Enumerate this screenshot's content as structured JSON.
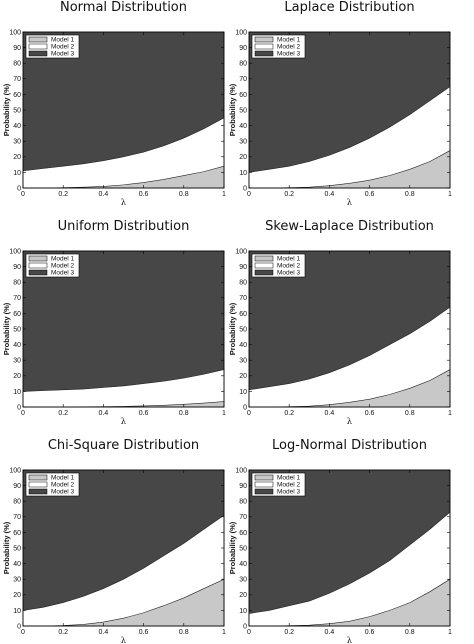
{
  "chart_data": [
    {
      "type": "area",
      "title": "Normal Distribution",
      "xlabel": "λ",
      "ylabel": "Probability (%)",
      "xlim": [
        0,
        1
      ],
      "ylim": [
        0,
        100
      ],
      "xticks": [
        "0",
        "0.2",
        "0.4",
        "0.6",
        "0.8",
        "1"
      ],
      "yticks": [
        "0",
        "10",
        "20",
        "30",
        "40",
        "50",
        "60",
        "70",
        "80",
        "90",
        "100"
      ],
      "legend_position": "top-left",
      "x": [
        0,
        0.1,
        0.2,
        0.3,
        0.4,
        0.5,
        0.6,
        0.7,
        0.8,
        0.9,
        1.0
      ],
      "series": [
        {
          "name": "Model 1",
          "color": "#c8c8c8",
          "boundary": [
            0,
            0,
            0.2,
            0.5,
            1,
            2,
            3.5,
            5.5,
            8,
            10.5,
            14
          ]
        },
        {
          "name": "Model 2",
          "color": "#ffffff",
          "boundary": [
            11,
            12.5,
            14,
            15.5,
            17.5,
            20,
            23,
            27,
            32,
            38,
            45
          ]
        },
        {
          "name": "Model 3",
          "color": "#474747",
          "boundary": [
            100,
            100,
            100,
            100,
            100,
            100,
            100,
            100,
            100,
            100,
            100
          ]
        }
      ]
    },
    {
      "type": "area",
      "title": "Laplace Distribution",
      "xlabel": "λ",
      "ylabel": "Probability (%)",
      "xlim": [
        0,
        1
      ],
      "ylim": [
        0,
        100
      ],
      "xticks": [
        "0",
        "0.2",
        "0.4",
        "0.6",
        "0.8",
        "1"
      ],
      "yticks": [
        "0",
        "10",
        "20",
        "30",
        "40",
        "50",
        "60",
        "70",
        "80",
        "90",
        "100"
      ],
      "legend_position": "top-left",
      "x": [
        0,
        0.1,
        0.2,
        0.3,
        0.4,
        0.5,
        0.6,
        0.7,
        0.8,
        0.9,
        1.0
      ],
      "series": [
        {
          "name": "Model 1",
          "color": "#c8c8c8",
          "boundary": [
            0,
            0,
            0.2,
            0.5,
            1.5,
            3,
            5,
            8,
            12,
            17,
            24
          ]
        },
        {
          "name": "Model 2",
          "color": "#ffffff",
          "boundary": [
            10,
            12,
            14,
            17,
            21,
            26,
            32,
            39,
            47,
            56,
            65
          ]
        },
        {
          "name": "Model 3",
          "color": "#474747",
          "boundary": [
            100,
            100,
            100,
            100,
            100,
            100,
            100,
            100,
            100,
            100,
            100
          ]
        }
      ]
    },
    {
      "type": "area",
      "title": "Uniform Distribution",
      "xlabel": "λ",
      "ylabel": "Probability (%)",
      "xlim": [
        0,
        1
      ],
      "ylim": [
        0,
        100
      ],
      "xticks": [
        "0",
        "0.2",
        "0.4",
        "0.6",
        "0.8",
        "1"
      ],
      "yticks": [
        "0",
        "10",
        "20",
        "30",
        "40",
        "50",
        "60",
        "70",
        "80",
        "90",
        "100"
      ],
      "legend_position": "top-left",
      "x": [
        0,
        0.1,
        0.2,
        0.3,
        0.4,
        0.5,
        0.6,
        0.7,
        0.8,
        0.9,
        1.0
      ],
      "series": [
        {
          "name": "Model 1",
          "color": "#c8c8c8",
          "boundary": [
            0,
            0,
            0,
            0.1,
            0.2,
            0.4,
            0.7,
            1.1,
            1.7,
            2.5,
            3.5
          ]
        },
        {
          "name": "Model 2",
          "color": "#ffffff",
          "boundary": [
            10,
            10.5,
            11,
            11.5,
            12.5,
            13.5,
            15,
            16.5,
            18.5,
            21,
            24
          ]
        },
        {
          "name": "Model 3",
          "color": "#474747",
          "boundary": [
            100,
            100,
            100,
            100,
            100,
            100,
            100,
            100,
            100,
            100,
            100
          ]
        }
      ]
    },
    {
      "type": "area",
      "title": "Skew-Laplace Distribution",
      "xlabel": "λ",
      "ylabel": "Probability (%)",
      "xlim": [
        0,
        1
      ],
      "ylim": [
        0,
        100
      ],
      "xticks": [
        "0",
        "0.2",
        "0.4",
        "0.6",
        "0.8",
        "1"
      ],
      "yticks": [
        "0",
        "10",
        "20",
        "30",
        "40",
        "50",
        "60",
        "70",
        "80",
        "90",
        "100"
      ],
      "legend_position": "top-left",
      "x": [
        0,
        0.1,
        0.2,
        0.3,
        0.4,
        0.5,
        0.6,
        0.7,
        0.8,
        0.9,
        1.0
      ],
      "series": [
        {
          "name": "Model 1",
          "color": "#c8c8c8",
          "boundary": [
            0,
            0,
            0.2,
            0.5,
            1.5,
            3,
            5,
            8,
            12,
            17,
            24
          ]
        },
        {
          "name": "Model 2",
          "color": "#ffffff",
          "boundary": [
            11,
            13,
            15,
            18,
            22,
            27,
            33,
            40,
            47,
            55,
            64
          ]
        },
        {
          "name": "Model 3",
          "color": "#474747",
          "boundary": [
            100,
            100,
            100,
            100,
            100,
            100,
            100,
            100,
            100,
            100,
            100
          ]
        }
      ]
    },
    {
      "type": "area",
      "title": "Chi-Square Distribution",
      "xlabel": "λ",
      "ylabel": "Probability (%)",
      "xlim": [
        0,
        1
      ],
      "ylim": [
        0,
        100
      ],
      "xticks": [
        "0",
        "0.2",
        "0.4",
        "0.6",
        "0.8",
        "1"
      ],
      "yticks": [
        "0",
        "10",
        "20",
        "30",
        "40",
        "50",
        "60",
        "70",
        "80",
        "90",
        "100"
      ],
      "legend_position": "top-left",
      "x": [
        0,
        0.1,
        0.2,
        0.3,
        0.4,
        0.5,
        0.6,
        0.7,
        0.8,
        0.9,
        1.0
      ],
      "series": [
        {
          "name": "Model 1",
          "color": "#c8c8c8",
          "boundary": [
            0,
            0,
            0.3,
            1,
            2.5,
            5,
            8.5,
            13,
            18,
            24,
            30
          ]
        },
        {
          "name": "Model 2",
          "color": "#ffffff",
          "boundary": [
            10,
            12,
            15,
            19,
            24,
            30,
            37,
            45,
            53,
            62,
            71
          ]
        },
        {
          "name": "Model 3",
          "color": "#474747",
          "boundary": [
            100,
            100,
            100,
            100,
            100,
            100,
            100,
            100,
            100,
            100,
            100
          ]
        }
      ]
    },
    {
      "type": "area",
      "title": "Log-Normal Distribution",
      "xlabel": "λ",
      "ylabel": "Probability (%)",
      "xlim": [
        0,
        1
      ],
      "ylim": [
        0,
        100
      ],
      "xticks": [
        "0",
        "0.2",
        "0.4",
        "0.6",
        "0.8",
        "1"
      ],
      "yticks": [
        "0",
        "10",
        "20",
        "30",
        "40",
        "50",
        "60",
        "70",
        "80",
        "90",
        "100"
      ],
      "legend_position": "top-left",
      "x": [
        0,
        0.1,
        0.2,
        0.3,
        0.4,
        0.5,
        0.6,
        0.7,
        0.8,
        0.9,
        1.0
      ],
      "series": [
        {
          "name": "Model 1",
          "color": "#c8c8c8",
          "boundary": [
            0,
            0,
            0.2,
            0.5,
            1.5,
            3,
            6,
            10,
            15,
            22,
            30
          ]
        },
        {
          "name": "Model 2",
          "color": "#ffffff",
          "boundary": [
            8,
            10,
            13,
            16,
            21,
            27,
            34,
            42,
            52,
            62,
            73
          ]
        },
        {
          "name": "Model 3",
          "color": "#474747",
          "boundary": [
            100,
            100,
            100,
            100,
            100,
            100,
            100,
            100,
            100,
            100,
            100
          ]
        }
      ]
    }
  ]
}
